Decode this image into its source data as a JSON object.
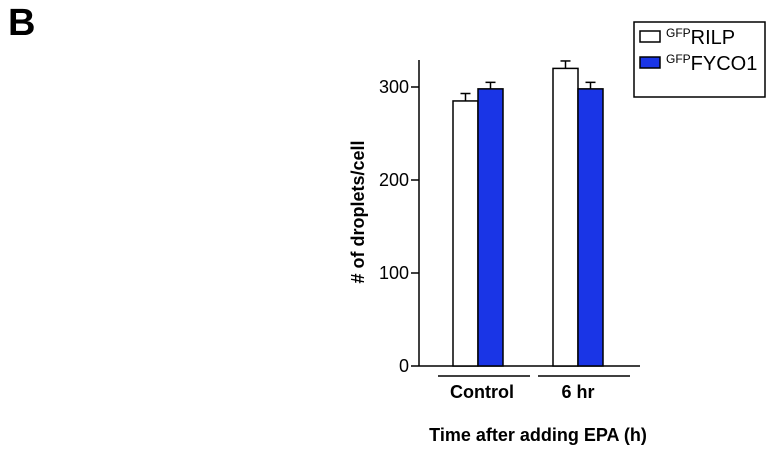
{
  "panel_label": "B",
  "chart_data": {
    "type": "bar",
    "categories": [
      "Control",
      "6 hr"
    ],
    "series": [
      {
        "name_prefix": "GFP",
        "name_main": "RILP",
        "color": "#ffffff",
        "values": [
          285,
          320
        ],
        "errors": [
          8,
          8
        ]
      },
      {
        "name_prefix": "GFP",
        "name_main": "FYCO1",
        "color": "#1a35e6",
        "values": [
          298,
          298
        ],
        "errors": [
          7,
          7
        ]
      }
    ],
    "ylabel": "# of droplets/cell",
    "xlabel": "Time after adding EPA (h)",
    "ylim": [
      0,
      300
    ],
    "yticks": [
      0,
      100,
      200,
      300
    ],
    "legend_position": "top-right",
    "grid": false
  }
}
